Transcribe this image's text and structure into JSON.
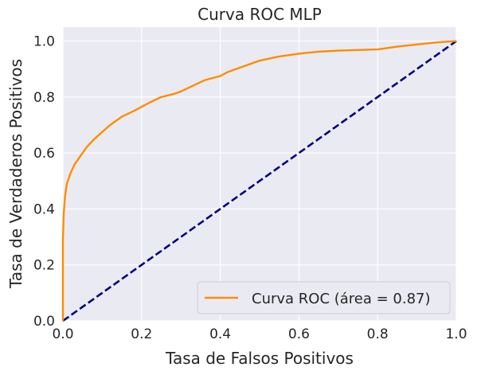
{
  "chart_data": {
    "type": "line",
    "title": "Curva ROC MLP",
    "xlabel": "Tasa de Falsos Positivos",
    "ylabel": "Tasa de Verdaderos Positivos",
    "xlim": [
      0.0,
      1.0
    ],
    "ylim": [
      0.0,
      1.05
    ],
    "x_ticks": [
      "0.0",
      "0.2",
      "0.4",
      "0.6",
      "0.8",
      "1.0"
    ],
    "y_ticks": [
      "0.0",
      "0.2",
      "0.4",
      "0.6",
      "0.8",
      "1.0"
    ],
    "grid": true,
    "background": "#eaeaf2",
    "legend": {
      "position": "lower-right",
      "label": "Curva ROC (área = 0.87)"
    },
    "series": [
      {
        "name": "Curva ROC (área = 0.87)",
        "color": "#ff8c00",
        "style": "solid",
        "x": [
          0.0,
          0.0,
          0.002,
          0.005,
          0.01,
          0.02,
          0.03,
          0.04,
          0.05,
          0.06,
          0.08,
          0.1,
          0.12,
          0.15,
          0.18,
          0.2,
          0.22,
          0.25,
          0.28,
          0.3,
          0.33,
          0.36,
          0.4,
          0.42,
          0.45,
          0.48,
          0.5,
          0.55,
          0.6,
          0.65,
          0.7,
          0.75,
          0.8,
          0.85,
          0.9,
          0.95,
          1.0
        ],
        "y": [
          0.0,
          0.29,
          0.38,
          0.44,
          0.49,
          0.53,
          0.56,
          0.58,
          0.6,
          0.62,
          0.65,
          0.675,
          0.7,
          0.73,
          0.75,
          0.765,
          0.78,
          0.8,
          0.81,
          0.82,
          0.84,
          0.86,
          0.875,
          0.89,
          0.905,
          0.92,
          0.93,
          0.945,
          0.955,
          0.962,
          0.966,
          0.968,
          0.97,
          0.98,
          0.988,
          0.995,
          1.0
        ]
      },
      {
        "name": "",
        "color": "#000080",
        "style": "dashed",
        "x": [
          0.0,
          1.0
        ],
        "y": [
          0.0,
          1.0
        ]
      }
    ]
  }
}
